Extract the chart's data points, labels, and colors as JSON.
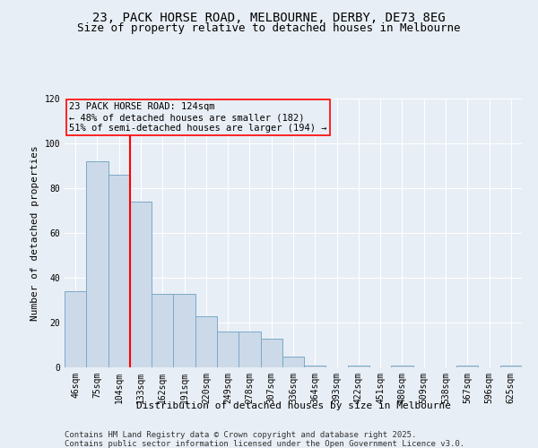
{
  "title1": "23, PACK HORSE ROAD, MELBOURNE, DERBY, DE73 8EG",
  "title2": "Size of property relative to detached houses in Melbourne",
  "xlabel": "Distribution of detached houses by size in Melbourne",
  "ylabel": "Number of detached properties",
  "categories": [
    "46sqm",
    "75sqm",
    "104sqm",
    "133sqm",
    "162sqm",
    "191sqm",
    "220sqm",
    "249sqm",
    "278sqm",
    "307sqm",
    "336sqm",
    "364sqm",
    "393sqm",
    "422sqm",
    "451sqm",
    "480sqm",
    "509sqm",
    "538sqm",
    "567sqm",
    "596sqm",
    "625sqm"
  ],
  "values": [
    34,
    92,
    86,
    74,
    33,
    33,
    23,
    16,
    16,
    13,
    5,
    1,
    0,
    1,
    0,
    1,
    0,
    0,
    1,
    0,
    1
  ],
  "bar_color": "#ccd9e8",
  "bar_edge_color": "#7aaac8",
  "ylim": [
    0,
    120
  ],
  "yticks": [
    0,
    20,
    40,
    60,
    80,
    100,
    120
  ],
  "red_line_x": 2.5,
  "annotation_text": "23 PACK HORSE ROAD: 124sqm\n← 48% of detached houses are smaller (182)\n51% of semi-detached houses are larger (194) →",
  "footer1": "Contains HM Land Registry data © Crown copyright and database right 2025.",
  "footer2": "Contains public sector information licensed under the Open Government Licence v3.0.",
  "bg_color": "#e8eef5",
  "plot_bg_color": "#e8eef5",
  "grid_color": "#ffffff",
  "title_fontsize": 10,
  "subtitle_fontsize": 9,
  "axis_fontsize": 8,
  "tick_fontsize": 7,
  "annotation_fontsize": 7.5,
  "footer_fontsize": 6.5
}
